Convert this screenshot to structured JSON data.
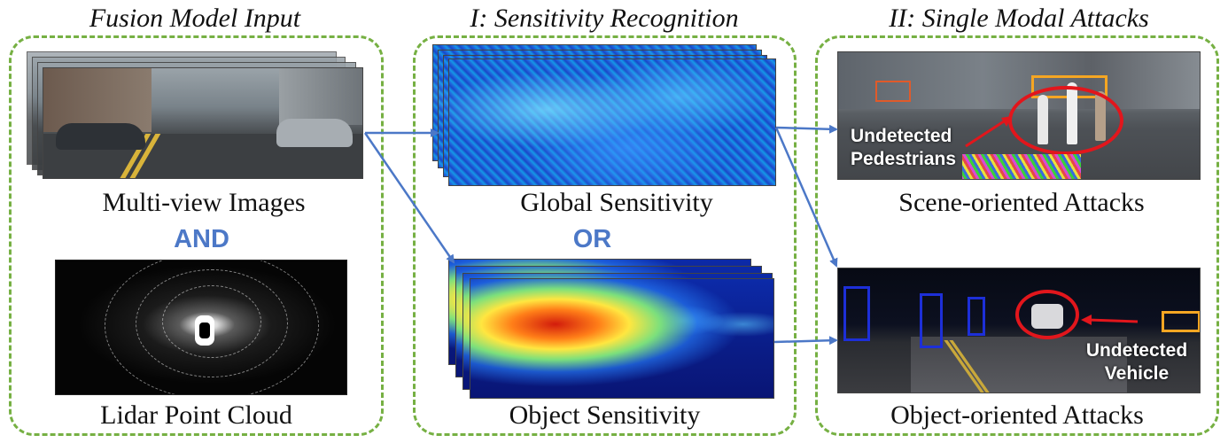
{
  "panels": {
    "input": {
      "title": "Fusion Model Input",
      "images_caption": "Multi-view Images",
      "connector": "AND",
      "lidar_caption": "Lidar Point Cloud"
    },
    "recognition": {
      "title": "I: Sensitivity Recognition",
      "global_caption": "Global Sensitivity",
      "connector": "OR",
      "object_caption": "Object Sensitivity"
    },
    "attacks": {
      "title": "II: Single Modal Attacks",
      "scene_caption": "Scene-oriented Attacks",
      "scene_label_line1": "Undetected",
      "scene_label_line2": "Pedestrians",
      "object_caption": "Object-oriented Attacks",
      "object_label_line1": "Undetected",
      "object_label_line2": "Vehicle"
    }
  },
  "colors": {
    "panel_border": "#76b043",
    "arrow": "#4c78c7",
    "connector_text": "#4c78c7",
    "highlight_ring": "#e2161c",
    "detection_box_orange": "#f5a623",
    "detection_box_blue": "#1d2fd8"
  }
}
